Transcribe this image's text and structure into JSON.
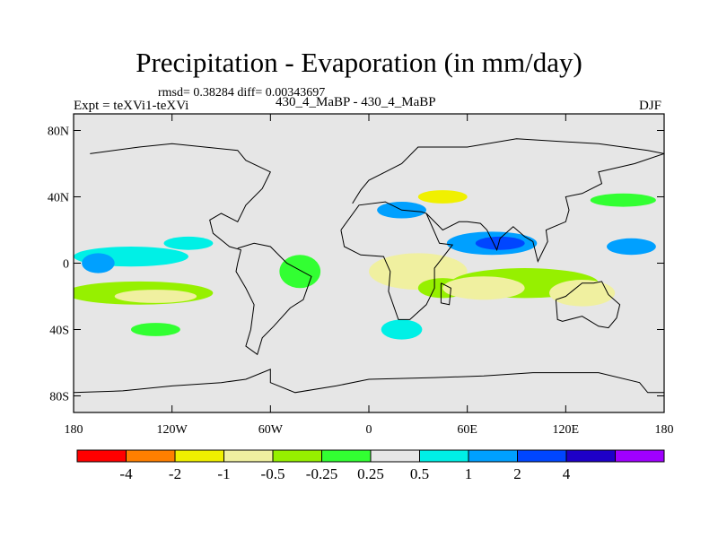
{
  "chart_data": {
    "type": "heatmap",
    "title": "Precipitation - Evaporation (in mm/day)",
    "stats_text": "rmsd= 0.38284  diff= 0.00343697",
    "left_label": "Expt = teXVi1-teXVi",
    "center_label": "430_4_MaBP - 430_4_MaBP",
    "right_label": "DJF",
    "x_ticks": [
      "180",
      "120W",
      "60W",
      "0",
      "60E",
      "120E",
      "180"
    ],
    "x_tick_values": [
      -180,
      -120,
      -60,
      0,
      60,
      120,
      180
    ],
    "y_ticks": [
      "80N",
      "40N",
      "0",
      "40S",
      "80S"
    ],
    "y_tick_values": [
      80,
      40,
      0,
      -40,
      -80
    ],
    "xlim": [
      -180,
      180
    ],
    "ylim": [
      -90,
      90
    ],
    "colorbar": {
      "colors": [
        "#ff0000",
        "#ff7f00",
        "#f0f000",
        "#f0f0a0",
        "#96f000",
        "#32ff32",
        "#e6e6e6",
        "#00f0e6",
        "#00a0ff",
        "#0046ff",
        "#1e00c8",
        "#a000ff"
      ],
      "labels": [
        "-4",
        "-2",
        "-1",
        "-0.5",
        "-0.25",
        "0.25",
        "0.5",
        "1",
        "2",
        "4"
      ]
    },
    "background_color": "#e6e6e6",
    "features": [
      {
        "lon": 30,
        "lat": -5,
        "w": 60,
        "h": 22,
        "level": -1
      },
      {
        "lon": 45,
        "lat": -15,
        "w": 30,
        "h": 12,
        "level": -0.5
      },
      {
        "lon": 95,
        "lat": -12,
        "w": 90,
        "h": 18,
        "level": -0.5
      },
      {
        "lon": 70,
        "lat": -15,
        "w": 50,
        "h": 14,
        "level": -1
      },
      {
        "lon": 130,
        "lat": -18,
        "w": 40,
        "h": 16,
        "level": -1
      },
      {
        "lon": -140,
        "lat": -18,
        "w": 90,
        "h": 14,
        "level": -0.5
      },
      {
        "lon": -130,
        "lat": -20,
        "w": 50,
        "h": 8,
        "level": -1
      },
      {
        "lon": 45,
        "lat": 40,
        "w": 30,
        "h": 8,
        "level": -2
      },
      {
        "lon": -42,
        "lat": -5,
        "w": 25,
        "h": 20,
        "level": -0.25
      },
      {
        "lon": 75,
        "lat": 12,
        "w": 55,
        "h": 14,
        "level": 1
      },
      {
        "lon": 80,
        "lat": 12,
        "w": 30,
        "h": 8,
        "level": 2
      },
      {
        "lon": 20,
        "lat": 32,
        "w": 30,
        "h": 10,
        "level": 1
      },
      {
        "lon": -145,
        "lat": 4,
        "w": 70,
        "h": 12,
        "level": 0.5
      },
      {
        "lon": -110,
        "lat": 12,
        "w": 30,
        "h": 8,
        "level": 0.5
      },
      {
        "lon": 160,
        "lat": 10,
        "w": 30,
        "h": 10,
        "level": 1
      },
      {
        "lon": 20,
        "lat": -40,
        "w": 25,
        "h": 12,
        "level": 0.5
      },
      {
        "lon": 100,
        "lat": -45,
        "w": 15,
        "h": 6,
        "level": 0.25
      },
      {
        "lon": -110,
        "lat": 30,
        "w": 50,
        "h": 8,
        "level": 0.25
      },
      {
        "lon": 155,
        "lat": 38,
        "w": 40,
        "h": 8,
        "level": -0.25
      },
      {
        "lon": -130,
        "lat": -40,
        "w": 30,
        "h": 8,
        "level": -0.25
      },
      {
        "lon": -165,
        "lat": 0,
        "w": 20,
        "h": 12,
        "level": 1
      }
    ],
    "coastlines": [
      [
        [
          -170,
          66
        ],
        [
          -140,
          70
        ],
        [
          -120,
          72
        ],
        [
          -100,
          70
        ],
        [
          -80,
          68
        ],
        [
          -75,
          62
        ],
        [
          -60,
          55
        ],
        [
          -65,
          45
        ],
        [
          -75,
          35
        ],
        [
          -80,
          25
        ],
        [
          -90,
          30
        ],
        [
          -97,
          26
        ],
        [
          -95,
          18
        ],
        [
          -85,
          10
        ],
        [
          -78,
          8
        ],
        [
          -80,
          0
        ],
        [
          -81,
          -5
        ],
        [
          -75,
          -15
        ],
        [
          -70,
          -25
        ],
        [
          -72,
          -40
        ],
        [
          -75,
          -50
        ],
        [
          -68,
          -55
        ],
        [
          -65,
          -45
        ],
        [
          -58,
          -38
        ],
        [
          -48,
          -27
        ],
        [
          -40,
          -22
        ],
        [
          -35,
          -8
        ],
        [
          -50,
          0
        ],
        [
          -60,
          10
        ],
        [
          -70,
          12
        ],
        [
          -80,
          9
        ]
      ],
      [
        [
          -10,
          36
        ],
        [
          -5,
          44
        ],
        [
          0,
          50
        ],
        [
          10,
          55
        ],
        [
          20,
          60
        ],
        [
          30,
          70
        ],
        [
          60,
          70
        ],
        [
          90,
          75
        ],
        [
          140,
          72
        ],
        [
          170,
          68
        ],
        [
          180,
          66
        ]
      ],
      [
        [
          -17,
          20
        ],
        [
          -15,
          10
        ],
        [
          -5,
          5
        ],
        [
          9,
          4
        ],
        [
          13,
          -5
        ],
        [
          12,
          -17
        ],
        [
          18,
          -34
        ],
        [
          25,
          -34
        ],
        [
          35,
          -25
        ],
        [
          40,
          -15
        ],
        [
          40,
          -3
        ],
        [
          51,
          11
        ],
        [
          43,
          12
        ],
        [
          35,
          30
        ],
        [
          32,
          31
        ],
        [
          20,
          32
        ],
        [
          10,
          37
        ],
        [
          -6,
          35
        ],
        [
          -17,
          20
        ]
      ],
      [
        [
          35,
          30
        ],
        [
          45,
          20
        ],
        [
          55,
          25
        ],
        [
          60,
          25
        ],
        [
          68,
          24
        ],
        [
          72,
          20
        ],
        [
          78,
          8
        ],
        [
          80,
          15
        ],
        [
          88,
          22
        ],
        [
          95,
          16
        ],
        [
          100,
          13
        ],
        [
          103,
          1
        ],
        [
          109,
          13
        ],
        [
          108,
          20
        ],
        [
          120,
          25
        ],
        [
          122,
          32
        ],
        [
          120,
          40
        ],
        [
          130,
          42
        ],
        [
          142,
          48
        ],
        [
          140,
          55
        ],
        [
          162,
          60
        ],
        [
          180,
          66
        ]
      ],
      [
        [
          114,
          -22
        ],
        [
          120,
          -20
        ],
        [
          130,
          -12
        ],
        [
          137,
          -12
        ],
        [
          142,
          -11
        ],
        [
          146,
          -19
        ],
        [
          153,
          -25
        ],
        [
          151,
          -33
        ],
        [
          146,
          -39
        ],
        [
          140,
          -38
        ],
        [
          130,
          -32
        ],
        [
          118,
          -35
        ],
        [
          115,
          -34
        ],
        [
          114,
          -22
        ]
      ],
      [
        [
          -180,
          -78
        ],
        [
          -150,
          -77
        ],
        [
          -120,
          -74
        ],
        [
          -90,
          -72
        ],
        [
          -75,
          -70
        ],
        [
          -60,
          -64
        ],
        [
          -60,
          -72
        ],
        [
          -45,
          -78
        ],
        [
          -20,
          -74
        ],
        [
          0,
          -70
        ],
        [
          40,
          -69
        ],
        [
          70,
          -68
        ],
        [
          100,
          -66
        ],
        [
          140,
          -66
        ],
        [
          165,
          -72
        ],
        [
          170,
          -78
        ],
        [
          180,
          -78
        ]
      ],
      [
        [
          44,
          -12
        ],
        [
          50,
          -15
        ],
        [
          49,
          -25
        ],
        [
          44,
          -24
        ],
        [
          44,
          -12
        ]
      ]
    ]
  }
}
